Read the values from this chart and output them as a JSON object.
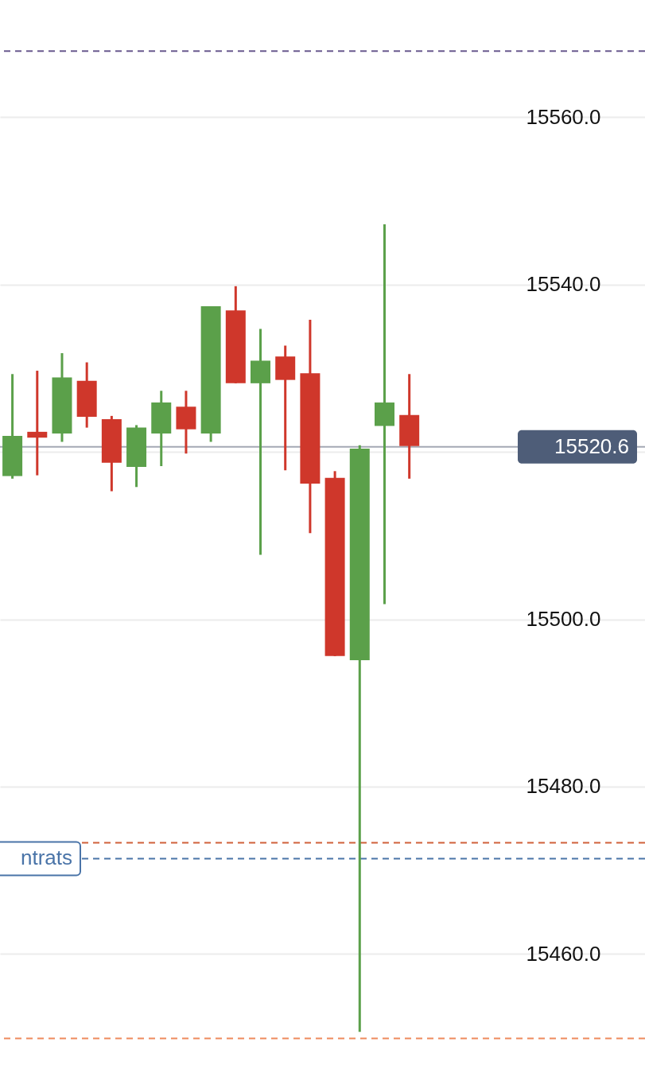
{
  "chart_data": {
    "type": "candlestick",
    "categories": [
      null,
      null,
      null,
      null,
      null,
      null,
      null,
      null,
      null,
      null,
      null,
      null,
      null,
      null,
      null,
      null,
      null,
      null,
      null,
      null,
      null,
      null,
      null,
      null,
      null,
      null
    ],
    "ohlc": [
      [
        15517.1,
        15529.3,
        15516.8,
        15521.9
      ],
      [
        15522.4,
        15529.7,
        15517.2,
        15521.7
      ],
      [
        15522.2,
        15531.8,
        15521.2,
        15528.9
      ],
      [
        15528.5,
        15530.7,
        15522.9,
        15524.2
      ],
      [
        15523.9,
        15524.3,
        15515.3,
        15518.7
      ],
      [
        15518.2,
        15523.2,
        15515.8,
        15522.9
      ],
      [
        15522.2,
        15527.3,
        15518.3,
        15525.9
      ],
      [
        15525.4,
        15527.3,
        15519.8,
        15522.7
      ],
      [
        15522.2,
        15537.4,
        15521.2,
        15537.4
      ],
      [
        15536.9,
        15539.8,
        15528.2,
        15528.2
      ],
      [
        15528.2,
        15534.7,
        15507.7,
        15530.9
      ],
      [
        15531.4,
        15532.7,
        15517.8,
        15528.6
      ],
      [
        15529.4,
        15535.8,
        15510.3,
        15516.2
      ],
      [
        15516.9,
        15517.7,
        15495.6,
        15495.6
      ],
      [
        15495.1,
        15520.8,
        15450.7,
        15520.4
      ],
      [
        15523.1,
        15547.2,
        15501.8,
        15525.9
      ],
      [
        15524.4,
        15529.3,
        15516.8,
        15520.7
      ],
      null,
      null,
      null,
      null,
      null,
      null,
      null,
      null,
      null
    ],
    "colors": [
      "#5ba04a",
      "#cf372b",
      "#5ba04a",
      "#cf372b",
      "#cf372b",
      "#5ba04a",
      "#5ba04a",
      "#cf372b",
      "#5ba04a",
      "#cf372b",
      "#5ba04a",
      "#cf372b",
      "#cf372b",
      "#cf372b",
      "#5ba04a",
      "#5ba04a",
      "#cf372b",
      null,
      null,
      null,
      null,
      null,
      null,
      null,
      null,
      null
    ],
    "ylim": [
      15445.3,
      15574.0
    ],
    "yticks": [
      {
        "value": 15460,
        "label": "15460.0"
      },
      {
        "value": 15480,
        "label": "15480.0"
      },
      {
        "value": 15500,
        "label": "15500.0"
      },
      {
        "value": 15520,
        "label": null
      },
      {
        "value": 15540,
        "label": "15540.0"
      },
      {
        "value": 15560,
        "label": "15560.0"
      }
    ],
    "ref_lines": [
      {
        "axis": "y",
        "value": 15567.9,
        "color": "#6a5a8e",
        "line_style": "dashed"
      },
      {
        "axis": "y",
        "value": 15520.6,
        "label": "15520.6",
        "color": "#a4a9b4",
        "line_style": "solid"
      },
      {
        "axis": "y",
        "value": 15473.3,
        "color": "#d0613a",
        "line_style": "dashed"
      },
      {
        "axis": "y",
        "value": 15471.4,
        "label": "ntrats",
        "color": "#4a74a8",
        "line_style": "dashed"
      },
      {
        "axis": "y",
        "value": 15449.9,
        "color": "#ee8a5c",
        "line_style": "dashed"
      }
    ],
    "grid": "y"
  }
}
